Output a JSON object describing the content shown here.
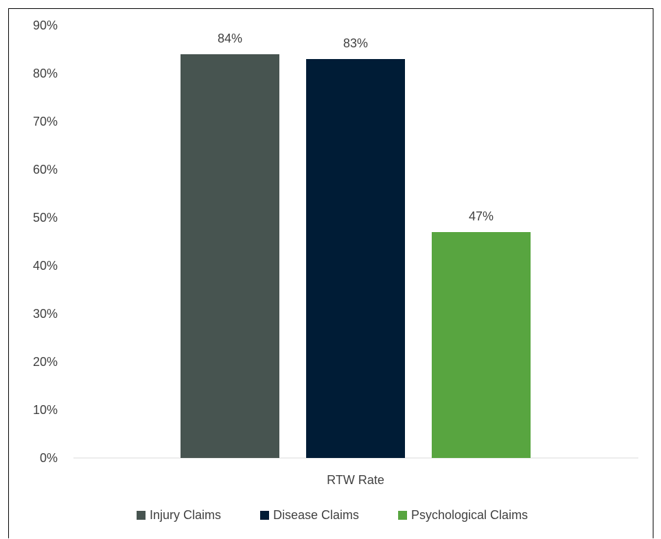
{
  "chart_data": {
    "type": "bar",
    "title": "",
    "xlabel": "",
    "ylabel": "",
    "categories": [
      "RTW Rate"
    ],
    "series": [
      {
        "name": "Injury Claims",
        "values": [
          84
        ],
        "label": "84%",
        "color": "#475450"
      },
      {
        "name": "Disease Claims",
        "values": [
          83
        ],
        "label": "83%",
        "color": "#001c36"
      },
      {
        "name": "Psychological Claims",
        "values": [
          47
        ],
        "label": "47%",
        "color": "#58a540"
      }
    ],
    "ylim": [
      0,
      90
    ],
    "yticks": [
      {
        "value": 0,
        "label": "0%"
      },
      {
        "value": 10,
        "label": "10%"
      },
      {
        "value": 20,
        "label": "20%"
      },
      {
        "value": 30,
        "label": "30%"
      },
      {
        "value": 40,
        "label": "40%"
      },
      {
        "value": 50,
        "label": "50%"
      },
      {
        "value": 60,
        "label": "60%"
      },
      {
        "value": 70,
        "label": "70%"
      },
      {
        "value": 80,
        "label": "80%"
      },
      {
        "value": 90,
        "label": "90%"
      }
    ],
    "grid": false,
    "legend": "bottom-center"
  }
}
